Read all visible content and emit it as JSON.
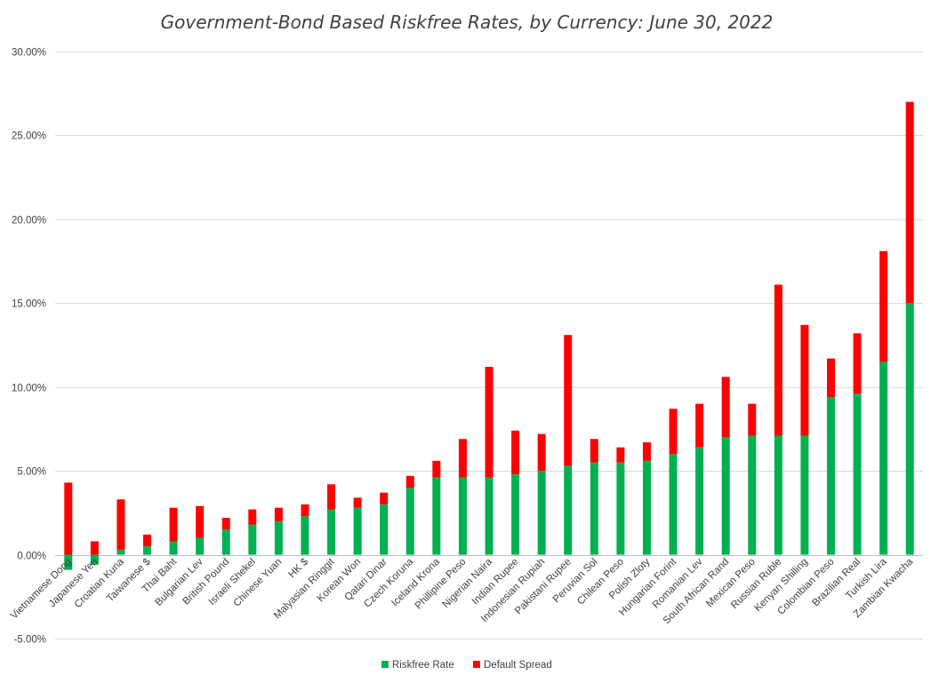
{
  "chart_data": {
    "type": "bar",
    "stacked": true,
    "title": "Government-Bond Based Riskfree Rates, by Currency: June 30, 2022",
    "xlabel": "",
    "ylabel": "",
    "ylim": [
      -5,
      30
    ],
    "yticks": [
      -5,
      0,
      5,
      10,
      15,
      20,
      25,
      30
    ],
    "ytick_labels": [
      "-5.00%",
      "0.00%",
      "5.00%",
      "10.00%",
      "15.00%",
      "20.00%",
      "25.00%",
      "30.00%"
    ],
    "grid": true,
    "legend_position": "bottom",
    "categories": [
      "Vietnamese Dong",
      "Japanese Yen",
      "Croatian Kuna",
      "Taiwanese $",
      "Thai Baht",
      "Bulgarian Lev",
      "British Pound",
      "Israeli Shekel",
      "Chinese Yuan",
      "HK $",
      "Malyasian Ringgit",
      "Korean Won",
      "Qatari Dinar",
      "Czech Koruna",
      "Iceland Krona",
      "Phillipine Peso",
      "Nigerian Naira",
      "Indian Rupee",
      "Indonesian Rupiah",
      "Pakistani Rupee",
      "Peruvian Sol",
      "Chilean Peso",
      "Polish Zloty",
      "Hungarian Forint",
      "Romanian Lev",
      "South African Rand",
      "Mexican Peso",
      "Russian Ruble",
      "Kenyan Shilling",
      "Colombian Peso",
      "Brazilian Real",
      "Turkish Lira",
      "Zambian Kwacha"
    ],
    "series": [
      {
        "name": "Riskfree Rate",
        "color": "#00b050",
        "values": [
          -0.9,
          -0.6,
          0.3,
          0.5,
          0.8,
          1.0,
          1.5,
          1.8,
          2.0,
          2.3,
          2.7,
          2.8,
          3.0,
          4.0,
          4.6,
          4.6,
          4.6,
          4.8,
          5.0,
          5.3,
          5.5,
          5.5,
          5.6,
          6.0,
          6.4,
          7.0,
          7.1,
          7.1,
          7.1,
          9.4,
          9.6,
          11.5,
          15.0
        ]
      },
      {
        "name": "Default Spread",
        "color": "#ff0000",
        "values": [
          4.3,
          0.8,
          3.0,
          0.7,
          2.0,
          1.9,
          0.7,
          0.9,
          0.8,
          0.7,
          1.5,
          0.6,
          0.7,
          0.7,
          1.0,
          2.3,
          6.6,
          2.6,
          2.2,
          7.8,
          1.4,
          0.9,
          1.1,
          2.7,
          2.6,
          3.6,
          1.9,
          9.0,
          6.6,
          2.3,
          3.6,
          6.6,
          12.0
        ]
      }
    ]
  }
}
